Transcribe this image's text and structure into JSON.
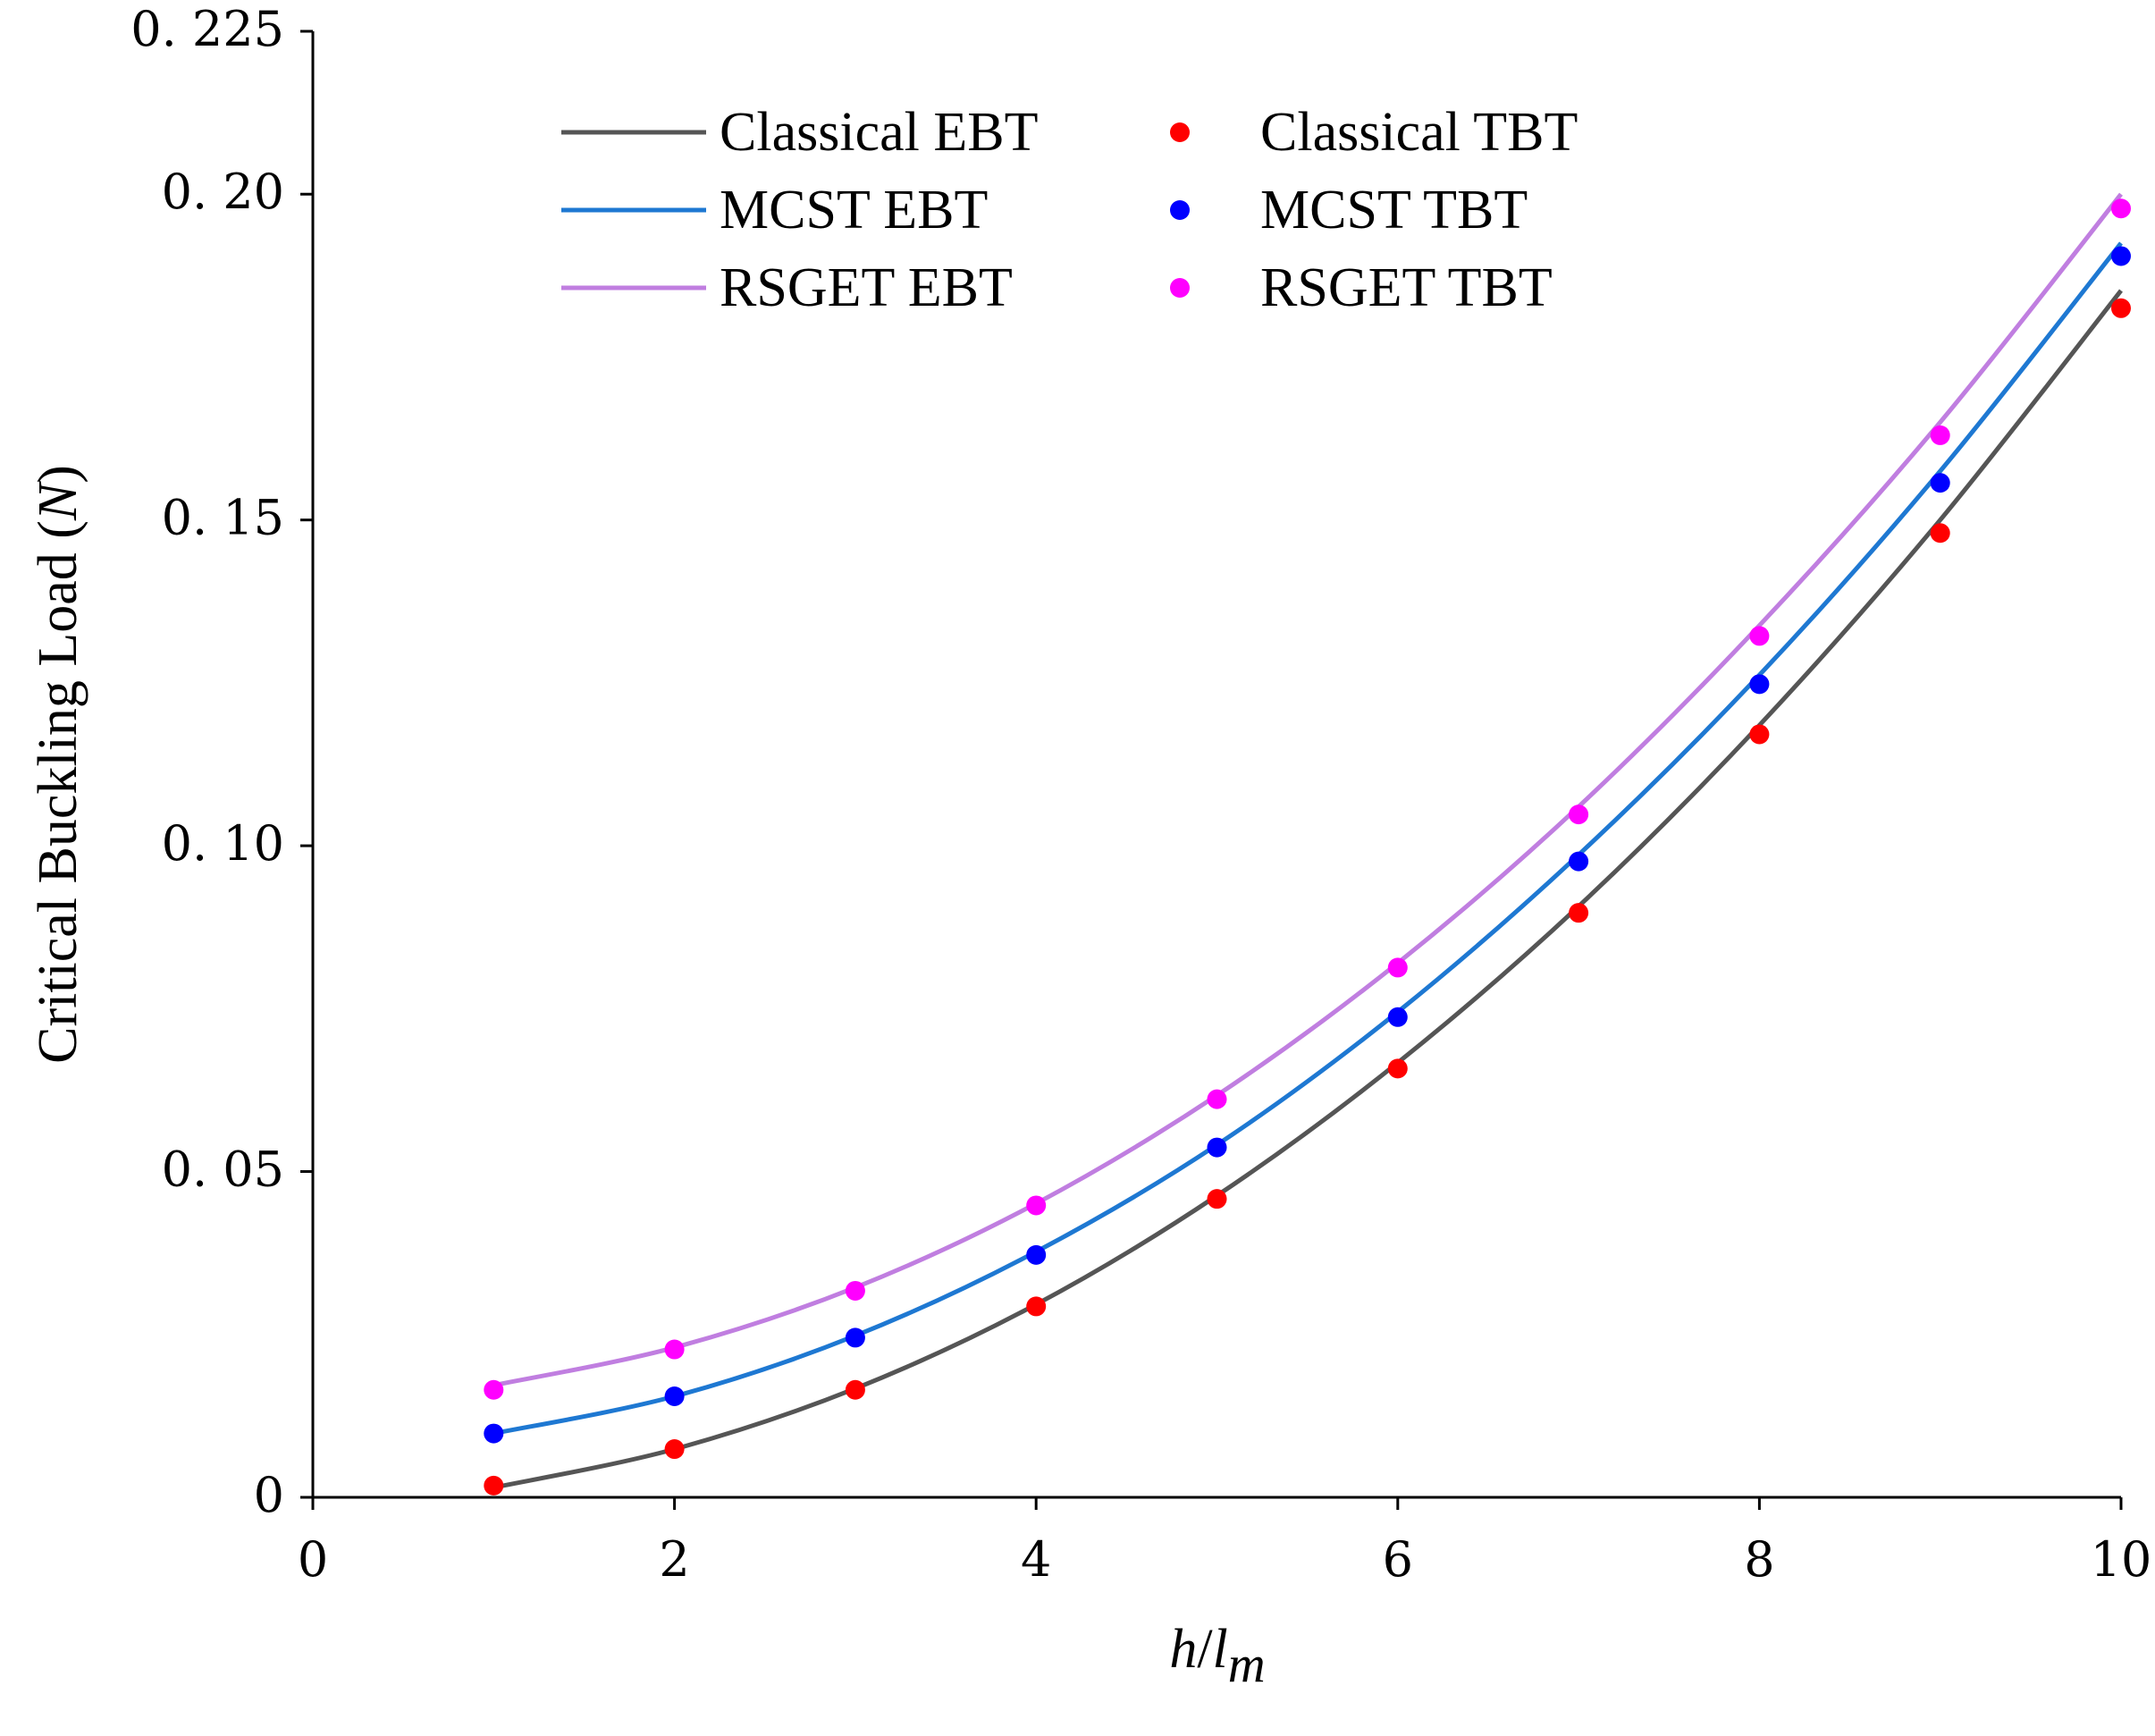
{
  "chart_data": {
    "type": "line",
    "xlabel": {
      "italic_main": "h",
      "slash": "/",
      "italic_l": "l",
      "subscript": "m"
    },
    "ylabel": {
      "prefix": "Critical Buckling Load (",
      "italic": "N",
      "suffix": ")"
    },
    "xlim": [
      0,
      10
    ],
    "ylim": [
      0,
      0.225
    ],
    "x_ticks": [
      0,
      2,
      4,
      6,
      8,
      10
    ],
    "x_tick_labels": [
      "0",
      "2",
      "4",
      "6",
      "8",
      "10"
    ],
    "y_ticks": [
      0,
      0.05,
      0.1,
      0.15,
      0.2,
      0.225
    ],
    "y_tick_labels": [
      "0",
      "0. 05",
      "0. 10",
      "0. 15",
      "0. 20",
      "0. 225"
    ],
    "x": [
      1,
      2,
      3,
      4,
      5,
      6,
      7,
      8,
      9,
      10
    ],
    "series": [
      {
        "name": "Classical EBT",
        "style": "line",
        "color": "#555555",
        "values": [
          0.0015,
          0.0074,
          0.0167,
          0.0296,
          0.0463,
          0.0667,
          0.0907,
          0.1185,
          0.15,
          0.1852
        ]
      },
      {
        "name": "Classical TBT",
        "style": "markers",
        "color": "#ff0000",
        "values": [
          0.0018,
          0.0074,
          0.0165,
          0.0293,
          0.0458,
          0.0658,
          0.0897,
          0.1171,
          0.148,
          0.1825
        ]
      },
      {
        "name": "MCST EBT",
        "style": "line",
        "color": "#1e78d2",
        "values": [
          0.0098,
          0.0155,
          0.0248,
          0.0377,
          0.0541,
          0.0745,
          0.0986,
          0.1262,
          0.1575,
          0.1925
        ]
      },
      {
        "name": "MCST TBT",
        "style": "markers",
        "color": "#0000ff",
        "values": [
          0.0098,
          0.0155,
          0.0245,
          0.0372,
          0.0537,
          0.0737,
          0.0976,
          0.1248,
          0.1557,
          0.1905
        ]
      },
      {
        "name": "RSGET EBT",
        "style": "line",
        "color": "#c07ee0",
        "values": [
          0.0172,
          0.023,
          0.0322,
          0.0451,
          0.0617,
          0.082,
          0.106,
          0.1338,
          0.165,
          0.2
        ]
      },
      {
        "name": "RSGET TBT",
        "style": "markers",
        "color": "#ff00ff",
        "values": [
          0.0165,
          0.0227,
          0.0317,
          0.0448,
          0.0611,
          0.0813,
          0.1048,
          0.1322,
          0.163,
          0.1978
        ]
      }
    ],
    "legend_position": "top-left"
  }
}
